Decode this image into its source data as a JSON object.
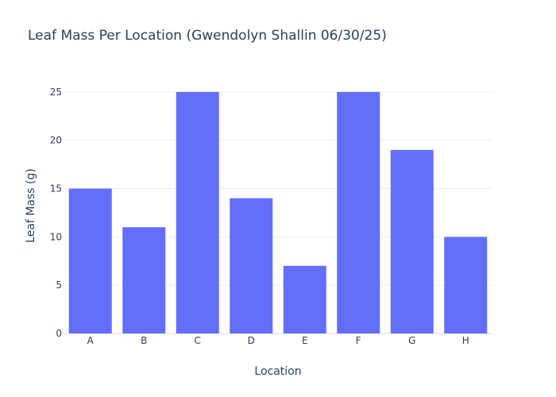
{
  "chart_data": {
    "type": "bar",
    "title": "Leaf Mass Per Location (Gwendolyn Shallin 06/30/25)",
    "xlabel": "Location",
    "ylabel": "Leaf Mass (g)",
    "categories": [
      "A",
      "B",
      "C",
      "D",
      "E",
      "F",
      "G",
      "H"
    ],
    "values": [
      15,
      11,
      25,
      14,
      7,
      25,
      19,
      10
    ],
    "ylim": [
      0,
      26.3
    ],
    "yticks": [
      0,
      5,
      10,
      15,
      20,
      25
    ],
    "grid": true,
    "bar_color": "#636efa",
    "background": "#ffffff"
  }
}
